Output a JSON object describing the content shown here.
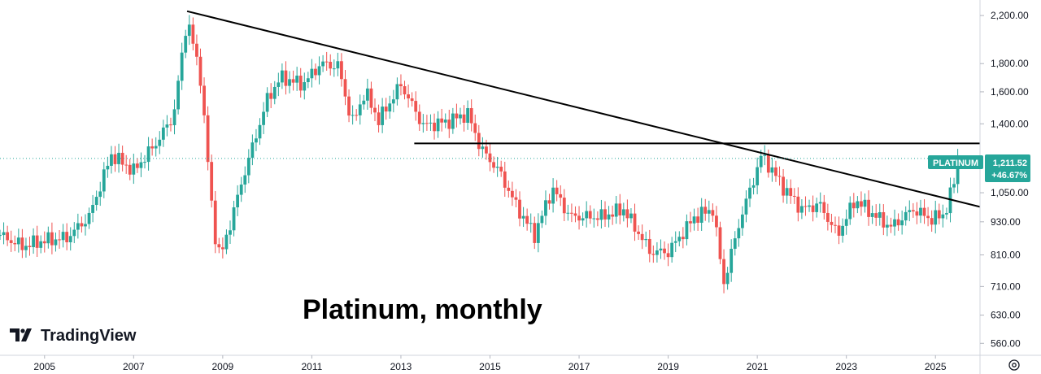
{
  "chart_data": {
    "type": "candlestick",
    "annotation": "Platinum, monthly",
    "watermark": "TradingView",
    "scale": "log",
    "ylim": [
      540,
      2300
    ],
    "xlim": [
      2004.0,
      2026.0
    ],
    "y_ticks": [
      {
        "value": 2200,
        "label": "2,200.00"
      },
      {
        "value": 1800,
        "label": "1,800.00"
      },
      {
        "value": 1600,
        "label": "1,600.00"
      },
      {
        "value": 1400,
        "label": "1,400.00"
      },
      {
        "value": 1050,
        "label": "1,050.00"
      },
      {
        "value": 930,
        "label": "930.00"
      },
      {
        "value": 810,
        "label": "810.00"
      },
      {
        "value": 710,
        "label": "710.00"
      },
      {
        "value": 630,
        "label": "630.00"
      },
      {
        "value": 560,
        "label": "560.00"
      }
    ],
    "x_ticks": [
      "2005",
      "2007",
      "2009",
      "2011",
      "2013",
      "2015",
      "2017",
      "2019",
      "2021",
      "2023",
      "2025"
    ],
    "last_price": {
      "symbol": "PLATINUM",
      "value": "1,211.52",
      "change": "+46.67%",
      "numeric": 1211.52
    },
    "colors": {
      "up": "#26a69a",
      "down": "#ef5350",
      "line": "#000000",
      "axis": "#d1d4dc"
    },
    "trendlines": [
      {
        "from": [
          2008.2,
          2240
        ],
        "to": [
          2026.0,
          990
        ]
      },
      {
        "from": [
          2013.3,
          1290
        ],
        "to": [
          2026.0,
          1290
        ]
      }
    ],
    "price_path": [
      [
        2004.0,
        880
      ],
      [
        2004.5,
        840
      ],
      [
        2005.0,
        860
      ],
      [
        2005.5,
        870
      ],
      [
        2006.0,
        950
      ],
      [
        2006.5,
        1230
      ],
      [
        2007.0,
        1150
      ],
      [
        2007.5,
        1290
      ],
      [
        2007.9,
        1450
      ],
      [
        2008.2,
        2180
      ],
      [
        2008.5,
        1700
      ],
      [
        2008.8,
        900
      ],
      [
        2008.95,
        800
      ],
      [
        2009.5,
        1150
      ],
      [
        2010.0,
        1550
      ],
      [
        2010.3,
        1700
      ],
      [
        2010.8,
        1650
      ],
      [
        2011.2,
        1800
      ],
      [
        2011.6,
        1780
      ],
      [
        2011.9,
        1400
      ],
      [
        2012.2,
        1600
      ],
      [
        2012.5,
        1420
      ],
      [
        2013.0,
        1650
      ],
      [
        2013.5,
        1390
      ],
      [
        2014.0,
        1410
      ],
      [
        2014.5,
        1460
      ],
      [
        2014.8,
        1260
      ],
      [
        2015.2,
        1150
      ],
      [
        2015.6,
        990
      ],
      [
        2016.0,
        880
      ],
      [
        2016.4,
        1070
      ],
      [
        2016.8,
        950
      ],
      [
        2017.5,
        950
      ],
      [
        2018.0,
        980
      ],
      [
        2018.6,
        820
      ],
      [
        2019.0,
        820
      ],
      [
        2019.6,
        950
      ],
      [
        2020.0,
        980
      ],
      [
        2020.25,
        720
      ],
      [
        2020.6,
        930
      ],
      [
        2021.1,
        1230
      ],
      [
        2021.6,
        1070
      ],
      [
        2022.0,
        980
      ],
      [
        2022.4,
        1000
      ],
      [
        2022.8,
        880
      ],
      [
        2023.2,
        1020
      ],
      [
        2023.6,
        960
      ],
      [
        2024.0,
        910
      ],
      [
        2024.5,
        980
      ],
      [
        2024.9,
        940
      ],
      [
        2025.2,
        960
      ],
      [
        2025.4,
        1080
      ],
      [
        2025.5,
        1211.52
      ]
    ]
  }
}
